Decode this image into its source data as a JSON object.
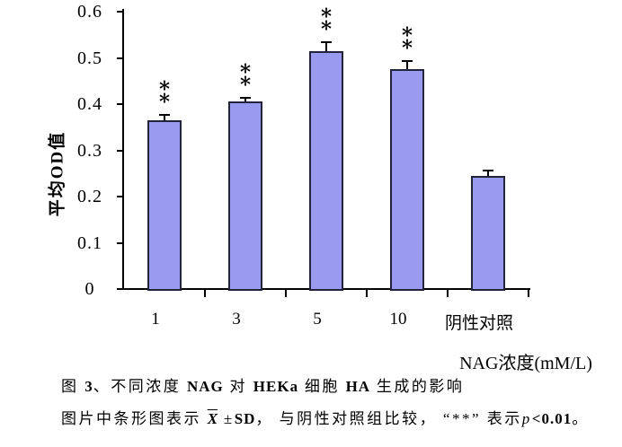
{
  "chart_data": {
    "type": "bar",
    "title": "",
    "categories": [
      "1",
      "3",
      "5",
      "10",
      "阴性对照"
    ],
    "values": [
      0.365,
      0.405,
      0.515,
      0.475,
      0.245
    ],
    "errors": [
      0.01,
      0.006,
      0.018,
      0.016,
      0.009
    ],
    "significance": [
      "**",
      "**",
      "**",
      "**",
      ""
    ],
    "xlabel": "NAG浓度(mM/L)",
    "ylabel": "平均OD值",
    "ylim": [
      0,
      0.6
    ],
    "yticks": [
      0,
      0.1,
      0.2,
      0.3,
      0.4,
      0.5,
      0.6
    ],
    "ytick_labels": [
      "0",
      "0.1",
      "0.2",
      "0.3",
      "0.4",
      "0.5",
      "0.6"
    ],
    "grid": false,
    "legend": null,
    "bar_color": "#9a9af1",
    "bar_border_color": "#23233a",
    "axis_color": "#000000"
  },
  "caption": {
    "line1_segments": [
      {
        "text": "图 ",
        "style": "normal"
      },
      {
        "text": "3",
        "style": "bold"
      },
      {
        "text": "、不同浓度 ",
        "style": "normal"
      },
      {
        "text": "NAG",
        "style": "bold"
      },
      {
        "text": " 对 ",
        "style": "normal"
      },
      {
        "text": "HEKa",
        "style": "bold"
      },
      {
        "text": " 细胞 ",
        "style": "normal"
      },
      {
        "text": "HA",
        "style": "bold"
      },
      {
        "text": " 生成的影响",
        "style": "normal"
      }
    ],
    "line2_segments": [
      {
        "text": "图片中条形图表示 ",
        "style": "normal"
      },
      {
        "text": "X",
        "style": "xbar"
      },
      {
        "text": " ±",
        "style": "normal"
      },
      {
        "text": "SD",
        "style": "bold"
      },
      {
        "text": "， 与阴性对照组比较， ",
        "style": "normal"
      },
      {
        "text": "“**”",
        "style": "normal"
      },
      {
        "text": " 表示",
        "style": "normal"
      },
      {
        "text": "p",
        "style": "italic"
      },
      {
        "text": "<0.01",
        "style": "bold"
      },
      {
        "text": "。",
        "style": "normal"
      }
    ]
  }
}
